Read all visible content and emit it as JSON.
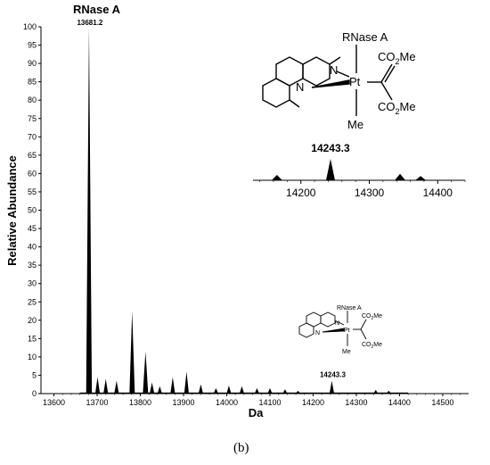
{
  "chart_data": [
    {
      "type": "line",
      "title": "RNase A",
      "xlabel": "Da",
      "ylabel": "Relative Abundance",
      "xlim": [
        13570,
        14560
      ],
      "ylim": [
        0,
        100
      ],
      "xticks": [
        13600,
        13700,
        13800,
        13900,
        14000,
        14100,
        14200,
        14300,
        14400,
        14500
      ],
      "yticks": [
        0,
        5,
        10,
        15,
        20,
        25,
        30,
        35,
        40,
        45,
        50,
        55,
        60,
        65,
        70,
        75,
        80,
        85,
        90,
        95,
        100
      ],
      "grid": false,
      "series": [
        {
          "peaks": [
            {
              "x": 13681.2,
              "y": 100
            },
            {
              "x": 13701,
              "y": 4.5
            },
            {
              "x": 13720,
              "y": 4
            },
            {
              "x": 13745,
              "y": 3.5
            },
            {
              "x": 13781,
              "y": 22.5
            },
            {
              "x": 13812,
              "y": 11.5
            },
            {
              "x": 13827,
              "y": 3
            },
            {
              "x": 13845,
              "y": 2
            },
            {
              "x": 13875,
              "y": 4.5
            },
            {
              "x": 13907,
              "y": 6
            },
            {
              "x": 13940,
              "y": 2.5
            },
            {
              "x": 13975,
              "y": 1.5
            },
            {
              "x": 14005,
              "y": 2.2
            },
            {
              "x": 14035,
              "y": 2
            },
            {
              "x": 14070,
              "y": 1.5
            },
            {
              "x": 14100,
              "y": 1.5
            },
            {
              "x": 14135,
              "y": 1.2
            },
            {
              "x": 14165,
              "y": 0.8
            },
            {
              "x": 14243.3,
              "y": 3.5
            },
            {
              "x": 14345,
              "y": 1
            },
            {
              "x": 14375,
              "y": 0.8
            }
          ]
        }
      ],
      "annotations": [
        {
          "text": "13681.2",
          "x": 13681.2,
          "y": 100
        },
        {
          "text": "14243.3",
          "x": 14243.3,
          "y": 3.5
        }
      ]
    },
    {
      "type": "line",
      "inset": true,
      "xlim": [
        14130,
        14440
      ],
      "xticks": [
        14200,
        14300,
        14400
      ],
      "series": [
        {
          "peaks": [
            {
              "x": 14165,
              "y": 25
            },
            {
              "x": 14243.3,
              "y": 100
            },
            {
              "x": 14345,
              "y": 30
            },
            {
              "x": 14375,
              "y": 20
            }
          ]
        }
      ],
      "annotations": [
        {
          "text": "14243.3",
          "x": 14243.3,
          "y": 100
        }
      ]
    }
  ],
  "structure": {
    "substituent_top": "RNase A",
    "metal": "Pt",
    "n_label": "N",
    "ester_group": "CO2Me",
    "methyl_group": "Me"
  },
  "panel_label": "(b)"
}
